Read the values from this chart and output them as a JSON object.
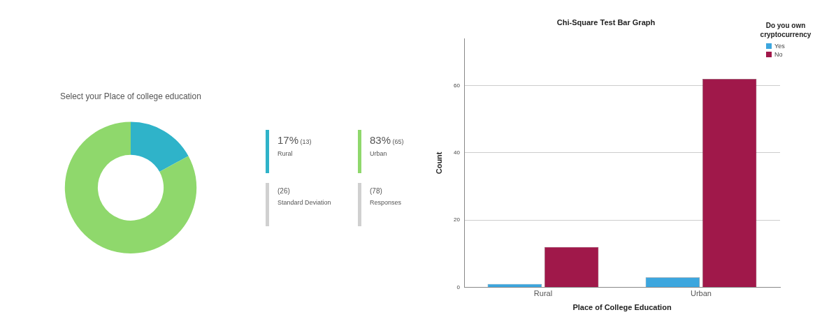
{
  "chart_data": [
    {
      "type": "donut",
      "title": "Select your Place of college education",
      "categories": [
        "Rural",
        "Urban"
      ],
      "values": [
        17,
        83
      ],
      "colors": [
        "#2fb3c9",
        "#8fd86c"
      ],
      "value_labels": [
        "17%",
        "83%"
      ],
      "legend": "right",
      "annotations": [
        "(13)",
        "(65)",
        "(26)",
        "Standard Deviation",
        "(78)",
        "Responses"
      ]
    },
    {
      "type": "bar",
      "title": "Chi-Square Test Bar Graph",
      "categories": [
        "Rural",
        "Urban"
      ],
      "series": [
        {
          "name": "Yes",
          "color": "#3ca6de",
          "values": [
            1,
            3
          ]
        },
        {
          "name": "No",
          "color": "#a0184a",
          "values": [
            12,
            62
          ]
        }
      ],
      "xlabel": "Place of College Education",
      "ylabel": "Count",
      "legend_title": "Do you own cryptocurrency",
      "legend": "top right",
      "ylim": [
        0,
        74
      ],
      "yticks": [
        0,
        20,
        40,
        60
      ],
      "grid": "y"
    }
  ]
}
